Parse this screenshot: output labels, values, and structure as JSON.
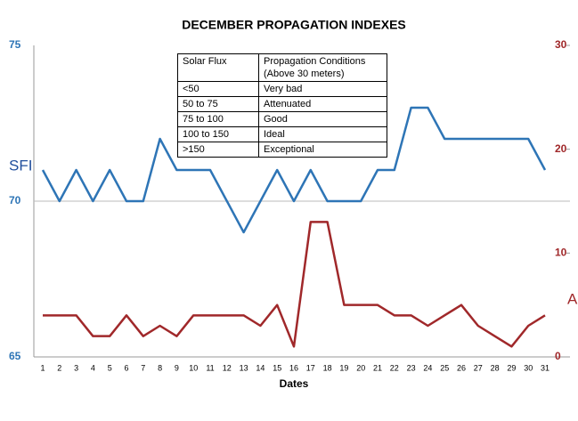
{
  "chart_data": {
    "type": "line",
    "title": "DECEMBER PROPAGATION  INDEXES",
    "xlabel": "Dates",
    "categories": [
      "1",
      "2",
      "3",
      "4",
      "5",
      "6",
      "7",
      "8",
      "9",
      "10",
      "11",
      "12",
      "13",
      "14",
      "15",
      "16",
      "17",
      "18",
      "19",
      "20",
      "21",
      "22",
      "23",
      "24",
      "25",
      "26",
      "27",
      "28",
      "29",
      "30",
      "31"
    ],
    "series": [
      {
        "name": "SFI",
        "color": "#2e75b6",
        "values": [
          71,
          70,
          71,
          70,
          71,
          70,
          70,
          72,
          71,
          71,
          71,
          70,
          69,
          70,
          71,
          70,
          71,
          70,
          70,
          70,
          71,
          71,
          73,
          73,
          72,
          72,
          72,
          72,
          72,
          72,
          71
        ]
      },
      {
        "name": "A",
        "color": "#a0282a",
        "axis": "y2",
        "values": [
          4,
          4,
          4,
          2,
          2,
          4,
          2,
          3,
          2,
          4,
          4,
          4,
          4,
          3,
          5,
          1,
          13,
          13,
          5,
          5,
          5,
          4,
          4,
          3,
          4,
          5,
          3,
          2,
          1,
          3,
          4
        ]
      }
    ],
    "ylim": [
      65,
      75
    ],
    "yticks": [
      65,
      70,
      75
    ],
    "y2lim": [
      0,
      30
    ],
    "y2ticks": [
      0,
      10,
      20,
      30
    ],
    "grid": true,
    "table": {
      "header": [
        "Solar Flux",
        "Propagation Conditions (Above 30 meters)"
      ],
      "rows": [
        [
          "<50",
          "Very bad"
        ],
        [
          "50 to 75",
          "Attenuated"
        ],
        [
          "75 to 100",
          "Good"
        ],
        [
          "100 to 150",
          "Ideal"
        ],
        [
          ">150",
          "Exceptional"
        ]
      ]
    }
  }
}
